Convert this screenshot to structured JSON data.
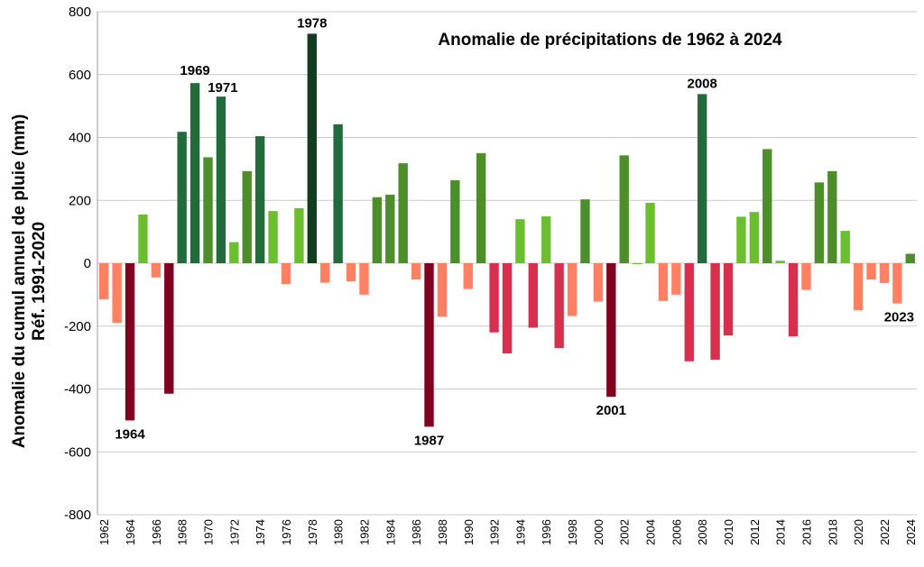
{
  "chart_data": {
    "type": "bar",
    "title": "Anomalie de précipitations de 1962 à 2024",
    "ylabel_lines": [
      "Anomalie du cumul annuel de pluie (mm)",
      "Réf. 1991-2020"
    ],
    "ylim": [
      -800,
      800
    ],
    "yticks": [
      800,
      600,
      400,
      200,
      0,
      -200,
      -400,
      -600,
      -800
    ],
    "grid": true,
    "x": [
      1962,
      1963,
      1964,
      1965,
      1966,
      1967,
      1968,
      1969,
      1970,
      1971,
      1972,
      1973,
      1974,
      1975,
      1976,
      1977,
      1978,
      1979,
      1980,
      1981,
      1982,
      1983,
      1984,
      1985,
      1986,
      1987,
      1988,
      1989,
      1990,
      1991,
      1992,
      1993,
      1994,
      1995,
      1996,
      1997,
      1998,
      1999,
      2000,
      2001,
      2002,
      2003,
      2004,
      2005,
      2006,
      2007,
      2008,
      2009,
      2010,
      2011,
      2012,
      2013,
      2014,
      2015,
      2016,
      2017,
      2018,
      2019,
      2020,
      2021,
      2022,
      2023,
      2024
    ],
    "xtick_labels": [
      "1962",
      "1964",
      "1966",
      "1968",
      "1970",
      "1972",
      "1974",
      "1976",
      "1978",
      "1980",
      "1982",
      "1984",
      "1986",
      "1988",
      "1990",
      "1992",
      "1994",
      "1996",
      "1998",
      "2000",
      "2002",
      "2004",
      "2006",
      "2008",
      "2010",
      "2012",
      "2014",
      "2016",
      "2018",
      "2020",
      "2022",
      "2024"
    ],
    "values": [
      -115,
      -190,
      -500,
      155,
      -45,
      -415,
      418,
      573,
      337,
      530,
      67,
      293,
      404,
      166,
      -66,
      175,
      730,
      -62,
      442,
      -58,
      -100,
      210,
      218,
      318,
      -52,
      -520,
      -170,
      264,
      -82,
      350,
      -220,
      -287,
      140,
      -205,
      149,
      -270,
      -168,
      203,
      -122,
      -425,
      343,
      -2,
      192,
      -120,
      -100,
      -312,
      538,
      -307,
      -230,
      148,
      163,
      363,
      8,
      -233,
      -85,
      257,
      293,
      103,
      -150,
      -52,
      -63,
      -128,
      30
    ],
    "colors": [
      "#FF8063",
      "#FF8063",
      "#800020",
      "#6BBF2E",
      "#FF8063",
      "#800020",
      "#226B3C",
      "#226B3C",
      "#4E8E2A",
      "#226B3C",
      "#6BBF2E",
      "#4E8E2A",
      "#226B3C",
      "#6BBF2E",
      "#FF8063",
      "#6BBF2E",
      "#123D20",
      "#FF8063",
      "#226B3C",
      "#FF8063",
      "#FF8063",
      "#4E8E2A",
      "#4E8E2A",
      "#4E8E2A",
      "#FF8063",
      "#800020",
      "#FF8063",
      "#4E8E2A",
      "#FF8063",
      "#4E8E2A",
      "#D7304F",
      "#D7304F",
      "#6BBF2E",
      "#D7304F",
      "#6BBF2E",
      "#D7304F",
      "#FF8063",
      "#4E8E2A",
      "#FF8063",
      "#800020",
      "#4E8E2A",
      "#6BBF2E",
      "#6BBF2E",
      "#FF8063",
      "#FF8063",
      "#D7304F",
      "#226B3C",
      "#D7304F",
      "#D7304F",
      "#6BBF2E",
      "#6BBF2E",
      "#4E8E2A",
      "#6BBF2E",
      "#D7304F",
      "#FF8063",
      "#4E8E2A",
      "#4E8E2A",
      "#6BBF2E",
      "#FF8063",
      "#FF8063",
      "#FF8063",
      "#FF8063",
      "#4E8E2A"
    ],
    "annotations": [
      {
        "year": 1964,
        "text": "1964",
        "position": "below"
      },
      {
        "year": 1969,
        "text": "1969",
        "position": "above"
      },
      {
        "year": 1971,
        "text": "1971",
        "position": "above"
      },
      {
        "year": 1978,
        "text": "1978",
        "position": "above"
      },
      {
        "year": 1987,
        "text": "1987",
        "position": "below"
      },
      {
        "year": 2001,
        "text": "2001",
        "position": "below"
      },
      {
        "year": 2008,
        "text": "2008",
        "position": "above"
      },
      {
        "year": 2023,
        "text": "2023",
        "position": "below"
      }
    ]
  }
}
